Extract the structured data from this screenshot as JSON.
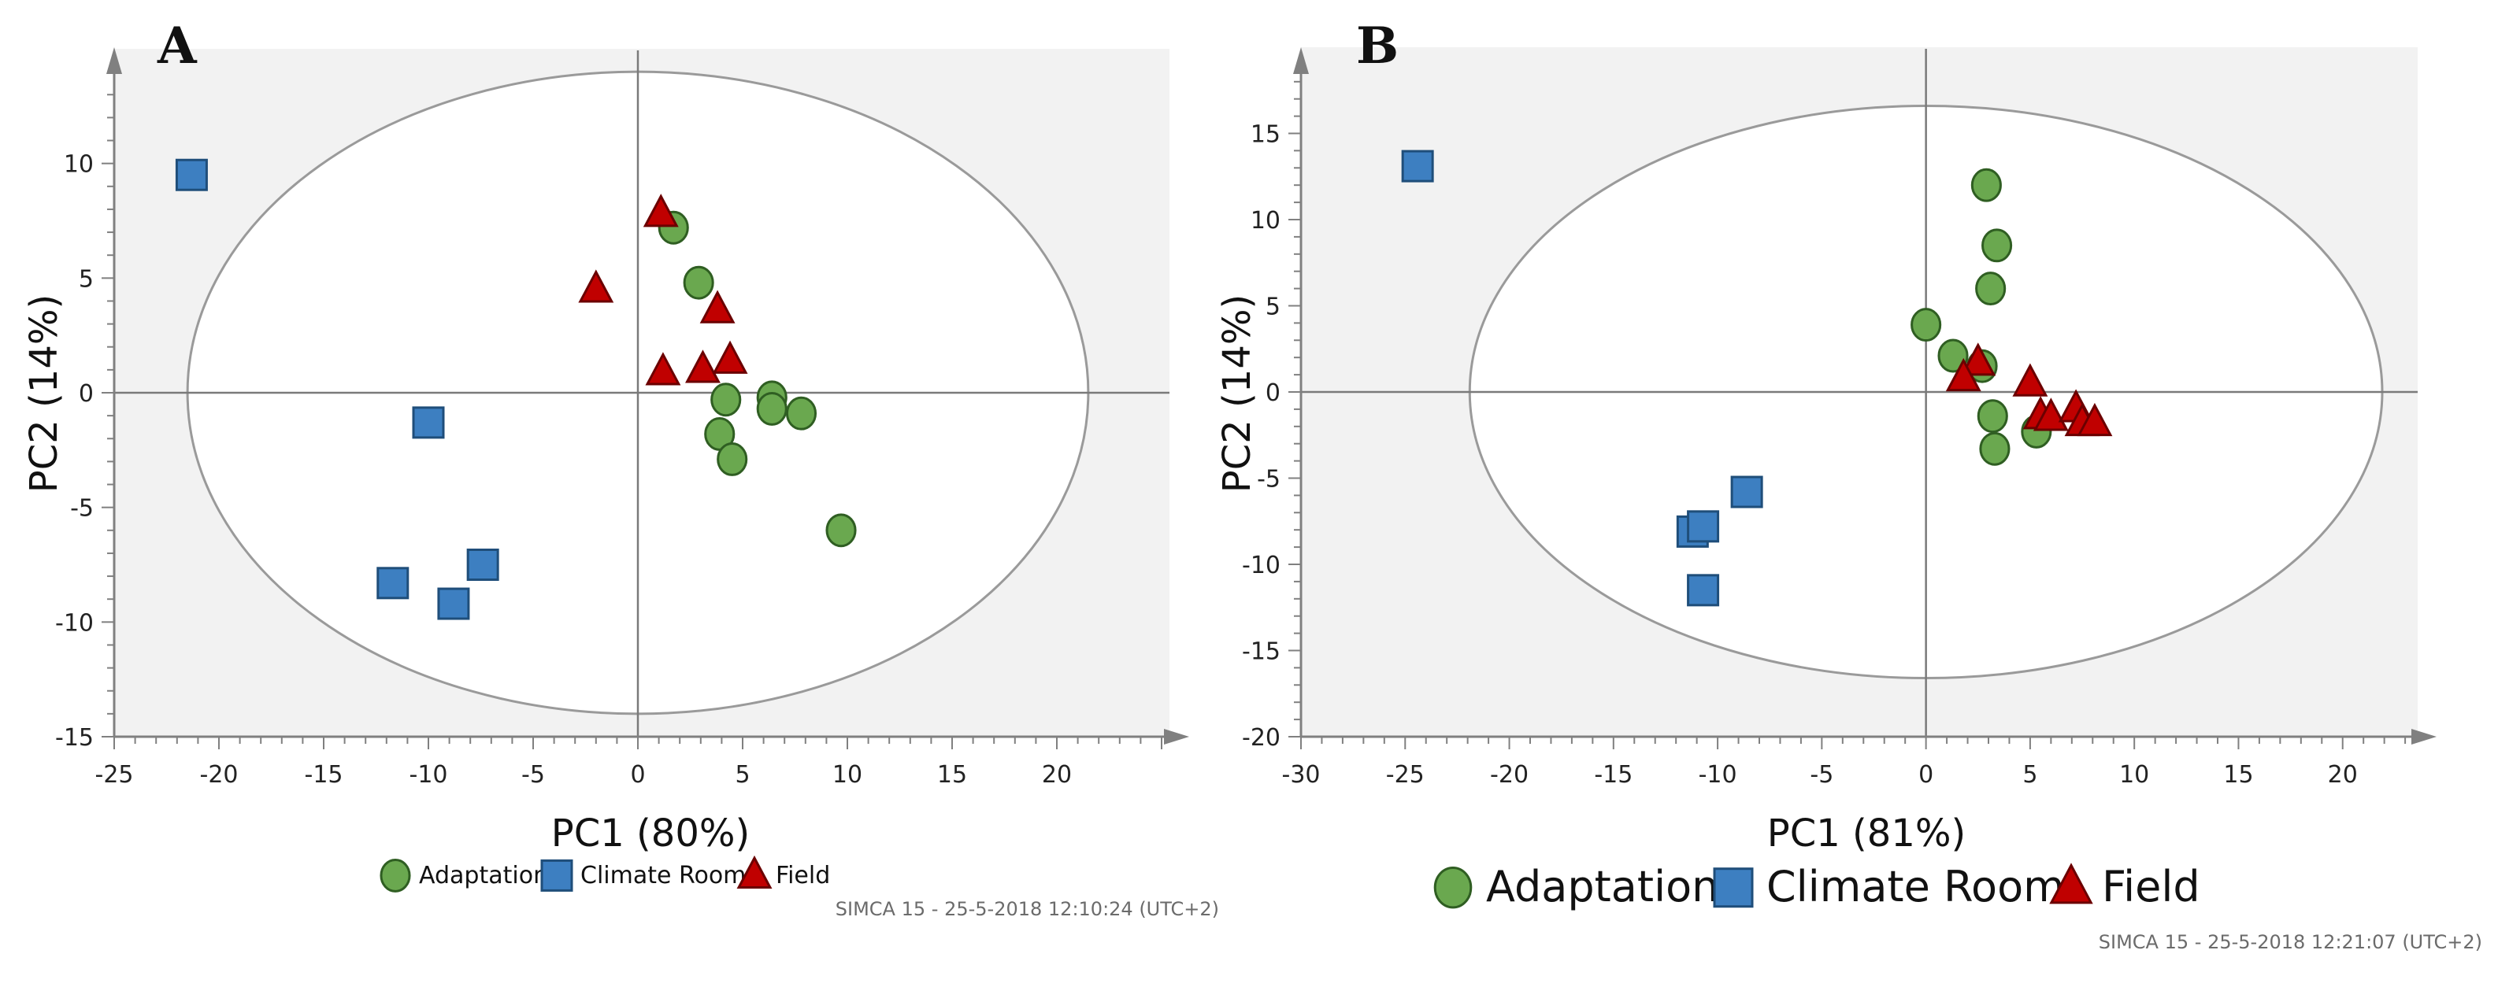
{
  "chart_data": [
    {
      "id": "A",
      "type": "scatter",
      "panel_label": "A",
      "xlabel": "PC1 (80%)",
      "ylabel": "PC2 (14%)",
      "xlim": [
        -25,
        25
      ],
      "ylim": [
        -15,
        15
      ],
      "xticks": [
        -25,
        -20,
        -15,
        -10,
        -5,
        0,
        5,
        10,
        15,
        20
      ],
      "yticks": [
        -15,
        -10,
        -5,
        0,
        5,
        10
      ],
      "ellipse": {
        "rx": 21.5,
        "ry": 14.0
      },
      "legend": [
        "Adaptation",
        "Climate Room",
        "Field"
      ],
      "footer": "SIMCA 15 - 25-5-2018 12:10:24 (UTC+2)",
      "series": [
        {
          "name": "Adaptation",
          "marker": "circle",
          "color": "#6aa84f",
          "points": [
            [
              1.7,
              7.2
            ],
            [
              2.9,
              4.8
            ],
            [
              4.2,
              -0.3
            ],
            [
              6.4,
              -0.2
            ],
            [
              6.4,
              -0.7
            ],
            [
              7.8,
              -0.9
            ],
            [
              3.9,
              -1.8
            ],
            [
              4.5,
              -2.9
            ],
            [
              9.7,
              -6.0
            ]
          ]
        },
        {
          "name": "Climate Room",
          "marker": "square",
          "color": "#3d7fc1",
          "points": [
            [
              -21.3,
              9.5
            ],
            [
              -10.0,
              -1.3
            ],
            [
              -11.7,
              -8.3
            ],
            [
              -8.8,
              -9.2
            ],
            [
              -7.4,
              -7.5
            ]
          ]
        },
        {
          "name": "Field",
          "marker": "triangle",
          "color": "#c00000",
          "points": [
            [
              1.1,
              7.8
            ],
            [
              -2.0,
              4.5
            ],
            [
              3.8,
              3.6
            ],
            [
              1.2,
              0.9
            ],
            [
              3.1,
              1.0
            ],
            [
              4.4,
              1.4
            ]
          ]
        }
      ]
    },
    {
      "id": "B",
      "type": "scatter",
      "panel_label": "B",
      "xlabel": "PC1 (81%)",
      "ylabel": "PC2 (14%)",
      "xlim": [
        -30,
        25
      ],
      "ylim": [
        -20,
        20
      ],
      "xticks": [
        -30,
        -25,
        -20,
        -15,
        -10,
        -5,
        0,
        5,
        10,
        15,
        20
      ],
      "yticks": [
        -20,
        -15,
        -10,
        -5,
        0,
        5,
        10,
        15
      ],
      "ellipse": {
        "rx": 21.9,
        "ry": 16.6
      },
      "legend": [
        "Adaptation",
        "Climate Room",
        "Field"
      ],
      "footer": "SIMCA 15 - 25-5-2018 12:21:07 (UTC+2)",
      "series": [
        {
          "name": "Adaptation",
          "marker": "circle",
          "color": "#6aa84f",
          "points": [
            [
              2.9,
              12.0
            ],
            [
              3.4,
              8.5
            ],
            [
              3.1,
              6.0
            ],
            [
              0.0,
              3.9
            ],
            [
              1.3,
              2.1
            ],
            [
              2.7,
              1.5
            ],
            [
              3.2,
              -1.4
            ],
            [
              3.3,
              -3.3
            ],
            [
              5.3,
              -2.3
            ]
          ]
        },
        {
          "name": "Climate Room",
          "marker": "square",
          "color": "#3d7fc1",
          "points": [
            [
              -24.4,
              13.1
            ],
            [
              -11.2,
              -8.1
            ],
            [
              -10.7,
              -7.8
            ],
            [
              -8.6,
              -5.8
            ],
            [
              -10.7,
              -11.5
            ]
          ]
        },
        {
          "name": "Field",
          "marker": "triangle",
          "color": "#c00000",
          "points": [
            [
              2.5,
              1.7
            ],
            [
              1.8,
              0.8
            ],
            [
              5.0,
              0.5
            ],
            [
              5.5,
              -1.4
            ],
            [
              6.0,
              -1.5
            ],
            [
              7.2,
              -1.0
            ],
            [
              7.5,
              -1.8
            ],
            [
              8.1,
              -1.8
            ]
          ]
        }
      ]
    }
  ]
}
